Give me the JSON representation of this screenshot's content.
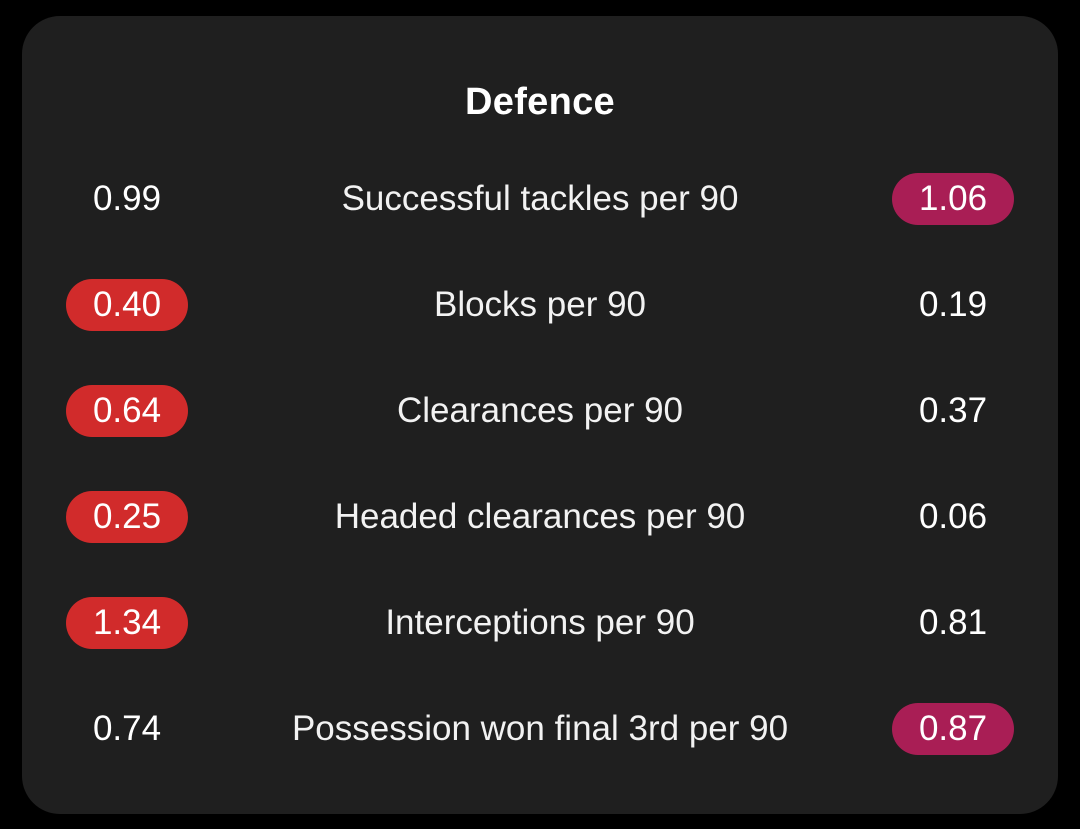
{
  "section": {
    "title": "Defence"
  },
  "colors": {
    "background": "#000000",
    "card": "#1f1f1f",
    "left_highlight": "#d12b2b",
    "right_highlight": "#a91e55",
    "text": "#ffffff"
  },
  "stats": [
    {
      "label": "Successful tackles per 90",
      "left": "0.99",
      "right": "1.06",
      "highlight": "right"
    },
    {
      "label": "Blocks per 90",
      "left": "0.40",
      "right": "0.19",
      "highlight": "left"
    },
    {
      "label": "Clearances per 90",
      "left": "0.64",
      "right": "0.37",
      "highlight": "left"
    },
    {
      "label": "Headed clearances per 90",
      "left": "0.25",
      "right": "0.06",
      "highlight": "left"
    },
    {
      "label": "Interceptions per 90",
      "left": "1.34",
      "right": "0.81",
      "highlight": "left"
    },
    {
      "label": "Possession won final 3rd per 90",
      "left": "0.74",
      "right": "0.87",
      "highlight": "right"
    }
  ]
}
